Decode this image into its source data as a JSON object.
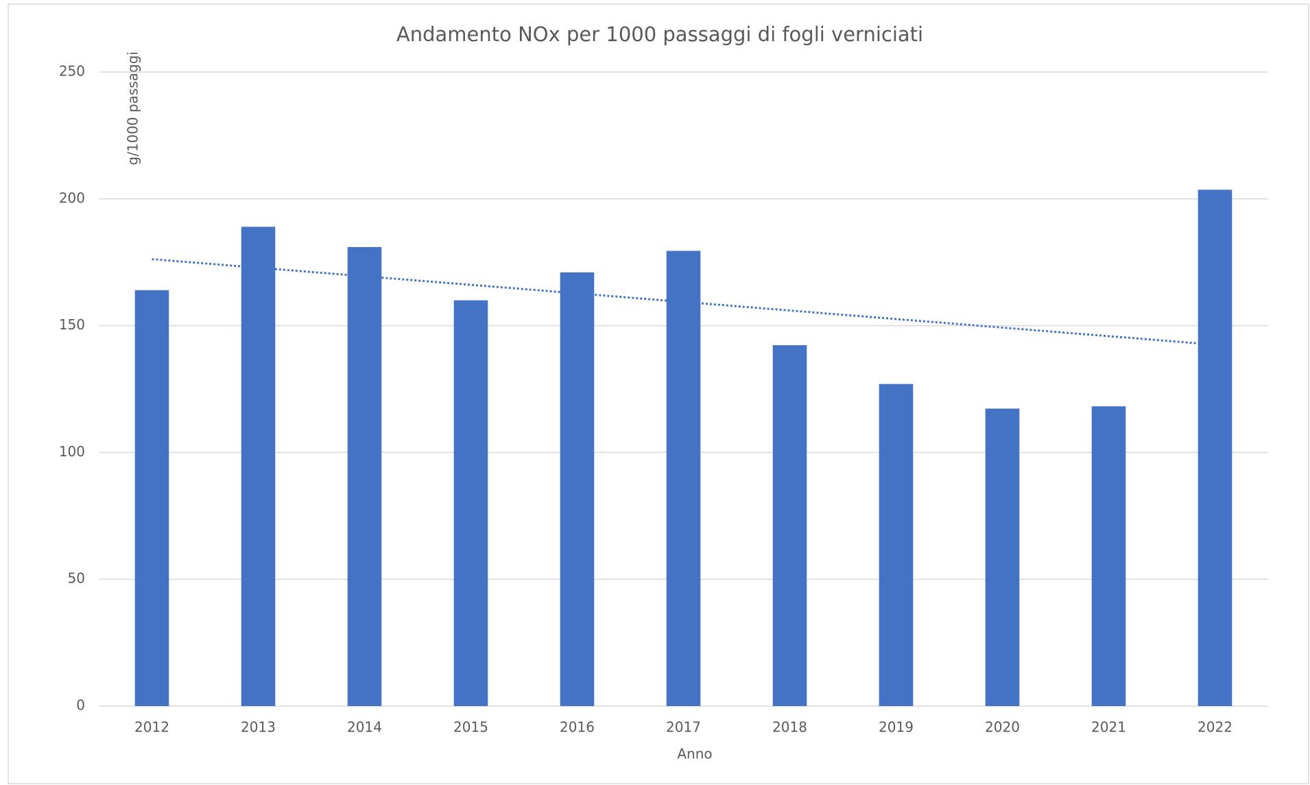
{
  "chart_data": {
    "type": "bar",
    "title": "Andamento NOx per 1000 passaggi di fogli verniciati",
    "x_label": "Anno",
    "y_label": "g/1000 passaggi",
    "categories": [
      "2012",
      "2013",
      "2014",
      "2015",
      "2016",
      "2017",
      "2018",
      "2019",
      "2020",
      "2021",
      "2022"
    ],
    "values": [
      164,
      189,
      181,
      160,
      171,
      179.5,
      142.3,
      127,
      117.3,
      118.2,
      203.6
    ],
    "color": "#4472c4",
    "ylim": [
      0,
      250
    ],
    "yticks": [
      0,
      50,
      100,
      150,
      200,
      250
    ],
    "grid": true,
    "trendline": "linear",
    "trendline_color": "#4472c4"
  }
}
